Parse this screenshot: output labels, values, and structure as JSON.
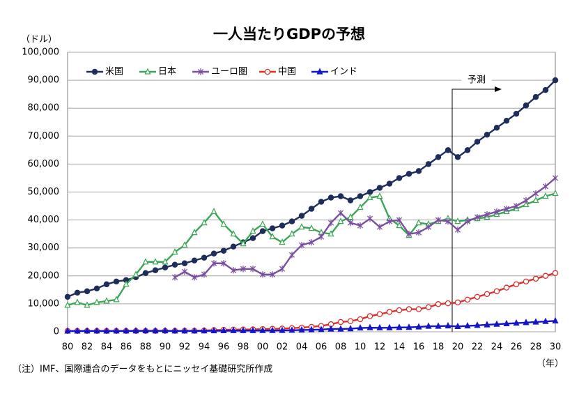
{
  "chart_data": {
    "type": "line",
    "title": "一人当たりGDPの予想",
    "y_unit": "（ドル）",
    "x_unit": "（年）",
    "note": "（注）IMF、国際連合のデータをもとにニッセイ基礎研究所作成",
    "annotation": "予測",
    "legend": "upper left",
    "grid": true,
    "categories": [
      "80",
      null,
      "82",
      null,
      "84",
      null,
      "86",
      null,
      "88",
      null,
      "90",
      null,
      "92",
      null,
      "94",
      null,
      "96",
      null,
      "98",
      null,
      "00",
      null,
      "02",
      null,
      "04",
      null,
      "06",
      null,
      "08",
      null,
      "10",
      null,
      "12",
      null,
      "14",
      null,
      "16",
      null,
      "18",
      null,
      "20",
      null,
      "22",
      null,
      "24",
      null,
      "26",
      null,
      "28",
      null,
      "30"
    ],
    "ylim": [
      0,
      100000
    ],
    "yticks": [
      {
        "value": 0,
        "label": "0"
      },
      {
        "value": 10000,
        "label": "10,000"
      },
      {
        "value": 20000,
        "label": "20,000"
      },
      {
        "value": 30000,
        "label": "30,000"
      },
      {
        "value": 40000,
        "label": "40,000"
      },
      {
        "value": 50000,
        "label": "50,000"
      },
      {
        "value": 60000,
        "label": "60,000"
      },
      {
        "value": 70000,
        "label": "70,000"
      },
      {
        "value": 80000,
        "label": "80,000"
      },
      {
        "value": 90000,
        "label": "90,000"
      },
      {
        "value": 100000,
        "label": "100,000"
      }
    ],
    "series": [
      {
        "name": "米国",
        "color": "#1f2d5a",
        "marker": "circle",
        "values": [
          12500,
          14000,
          14500,
          15500,
          17000,
          18000,
          18500,
          19500,
          21000,
          22000,
          23000,
          24000,
          24500,
          25500,
          26500,
          28000,
          29000,
          30500,
          32000,
          33500,
          36000,
          37000,
          38000,
          39500,
          41500,
          44000,
          46500,
          48000,
          48500,
          47000,
          48500,
          50000,
          51500,
          53000,
          55000,
          56500,
          57500,
          60000,
          62500,
          65000,
          62500,
          65000,
          68000,
          70500,
          73000,
          75500,
          78000,
          81000,
          84000,
          86500,
          90000
        ]
      },
      {
        "name": "日本",
        "color": "#3aa655",
        "marker": "open-triangle",
        "values": [
          9500,
          10500,
          9500,
          10500,
          11000,
          11500,
          17000,
          20500,
          25000,
          25000,
          25000,
          28500,
          31000,
          35500,
          39000,
          43000,
          38500,
          35000,
          31500,
          36000,
          38500,
          34000,
          32000,
          35000,
          37500,
          37000,
          35500,
          35000,
          39500,
          41000,
          44500,
          48000,
          48500,
          40500,
          38000,
          34500,
          39000,
          38500,
          39500,
          40500,
          39500,
          40000,
          40500,
          41000,
          42000,
          43000,
          44000,
          45500,
          47000,
          48500,
          49500
        ]
      },
      {
        "name": "ユーロ圏",
        "color": "#7b4fa0",
        "marker": "star",
        "values": [
          null,
          null,
          null,
          null,
          null,
          null,
          null,
          null,
          null,
          null,
          null,
          19500,
          21500,
          19500,
          20500,
          24500,
          24500,
          22000,
          22500,
          22500,
          20500,
          20500,
          22500,
          27500,
          31000,
          32000,
          34000,
          39000,
          42500,
          39000,
          38000,
          40500,
          37500,
          39500,
          40000,
          35000,
          35500,
          37500,
          40000,
          39500,
          36500,
          39500,
          41000,
          42000,
          43000,
          44000,
          45000,
          47000,
          49500,
          52000,
          55000
        ]
      },
      {
        "name": "中国",
        "color": "#d9302c",
        "marker": "open-circle",
        "values": [
          300,
          300,
          300,
          300,
          300,
          300,
          300,
          300,
          300,
          300,
          350,
          330,
          370,
          380,
          470,
          600,
          700,
          780,
          820,
          860,
          950,
          1050,
          1150,
          1300,
          1500,
          1750,
          2100,
          2700,
          3500,
          3800,
          4500,
          5600,
          6300,
          7100,
          7700,
          8100,
          8100,
          8800,
          9900,
          10200,
          10500,
          11500,
          12500,
          13500,
          14500,
          15800,
          17000,
          18000,
          19000,
          20000,
          21000
        ]
      },
      {
        "name": "インド",
        "color": "#1414c8",
        "marker": "triangle",
        "values": [
          270,
          270,
          290,
          290,
          280,
          300,
          310,
          340,
          360,
          350,
          370,
          300,
          320,
          300,
          340,
          380,
          400,
          420,
          420,
          440,
          450,
          460,
          480,
          550,
          630,
          710,
          800,
          1000,
          1000,
          1100,
          1350,
          1450,
          1430,
          1440,
          1560,
          1590,
          1730,
          1980,
          2000,
          2100,
          1900,
          2100,
          2300,
          2500,
          2700,
          2900,
          3100,
          3300,
          3500,
          3700,
          3900
        ]
      }
    ]
  }
}
